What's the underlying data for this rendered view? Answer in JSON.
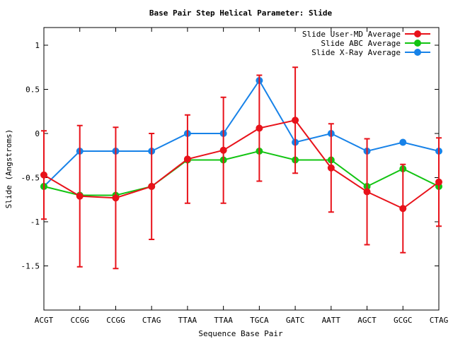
{
  "chart_data": {
    "type": "line",
    "title": "Base Pair Step Helical Parameter: Slide",
    "xlabel": "Sequence Base Pair",
    "ylabel": "Slide (Angstroms)",
    "ylim": [
      -2.0,
      1.2
    ],
    "yticks": [
      1,
      0.5,
      0,
      -0.5,
      -1,
      -1.5
    ],
    "ytick_labels": [
      "1",
      "0.5",
      "0",
      "-0.5",
      "-1",
      "-1.5"
    ],
    "categories": [
      "ACGT",
      "CCGG",
      "CCGG",
      "CTAG",
      "TTAA",
      "TTAA",
      "TGCA",
      "GATC",
      "AATT",
      "AGCT",
      "GCGC",
      "CTAG"
    ],
    "grid": false,
    "legend_position": "top-right",
    "series": [
      {
        "name": "Slide User-MD Average",
        "color": "#e8121a",
        "values": [
          -0.47,
          -0.71,
          -0.73,
          -0.6,
          -0.29,
          -0.19,
          0.06,
          0.15,
          -0.39,
          -0.66,
          -0.85,
          -0.55
        ],
        "error": [
          0.5,
          0.8,
          0.8,
          0.6,
          0.5,
          0.6,
          0.6,
          0.6,
          0.5,
          0.6,
          0.5,
          0.5
        ]
      },
      {
        "name": "Slide ABC Average",
        "color": "#12c412",
        "values": [
          -0.6,
          -0.7,
          -0.7,
          -0.6,
          -0.3,
          -0.3,
          -0.2,
          -0.3,
          -0.3,
          -0.6,
          -0.4,
          -0.6
        ]
      },
      {
        "name": "Slide X-Ray Average",
        "color": "#1782e8",
        "values": [
          -0.6,
          -0.2,
          -0.2,
          -0.2,
          0.0,
          0.0,
          0.6,
          -0.1,
          0.0,
          -0.2,
          -0.1,
          -0.2
        ]
      }
    ]
  }
}
